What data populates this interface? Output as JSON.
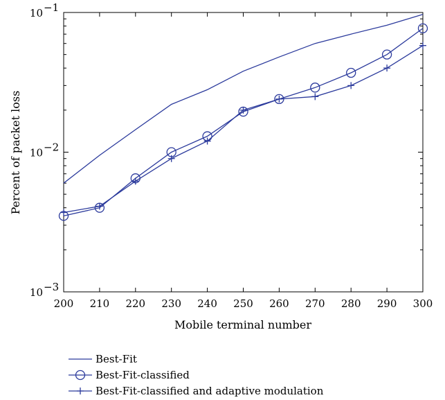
{
  "chart_data": {
    "type": "line",
    "title": "",
    "xlabel": "Mobile terminal number",
    "ylabel": "Percent of packet loss",
    "yscale": "log",
    "xlim": [
      200,
      300
    ],
    "ylim": [
      0.001,
      0.1
    ],
    "x": [
      200,
      210,
      220,
      230,
      240,
      250,
      260,
      270,
      280,
      290,
      300
    ],
    "xticks": [
      "200",
      "210",
      "220",
      "230",
      "240",
      "250",
      "260",
      "270",
      "280",
      "290",
      "300"
    ],
    "yticks": [
      {
        "base": "10",
        "exp": "−3",
        "value": 0.001
      },
      {
        "base": "10",
        "exp": "−2",
        "value": 0.01
      },
      {
        "base": "10",
        "exp": "−1",
        "value": 0.1
      }
    ],
    "grid": false,
    "legend_position": "below",
    "series": [
      {
        "name": "Best-Fit",
        "marker": "none",
        "color": "#2b3a9c",
        "values": [
          0.006,
          0.0095,
          0.0145,
          0.022,
          0.028,
          0.038,
          0.048,
          0.06,
          0.07,
          0.081,
          0.097
        ]
      },
      {
        "name": "Best-Fit-classified",
        "marker": "circle",
        "color": "#2b3a9c",
        "values": [
          0.0035,
          0.004,
          0.0065,
          0.01,
          0.013,
          0.0195,
          0.024,
          0.029,
          0.037,
          0.05,
          0.077
        ]
      },
      {
        "name": "Best-Fit-classified and adaptive modulation",
        "marker": "plus",
        "color": "#2b3a9c",
        "values": [
          0.0037,
          0.0041,
          0.0062,
          0.009,
          0.012,
          0.02,
          0.024,
          0.025,
          0.03,
          0.04,
          0.058
        ]
      }
    ]
  }
}
